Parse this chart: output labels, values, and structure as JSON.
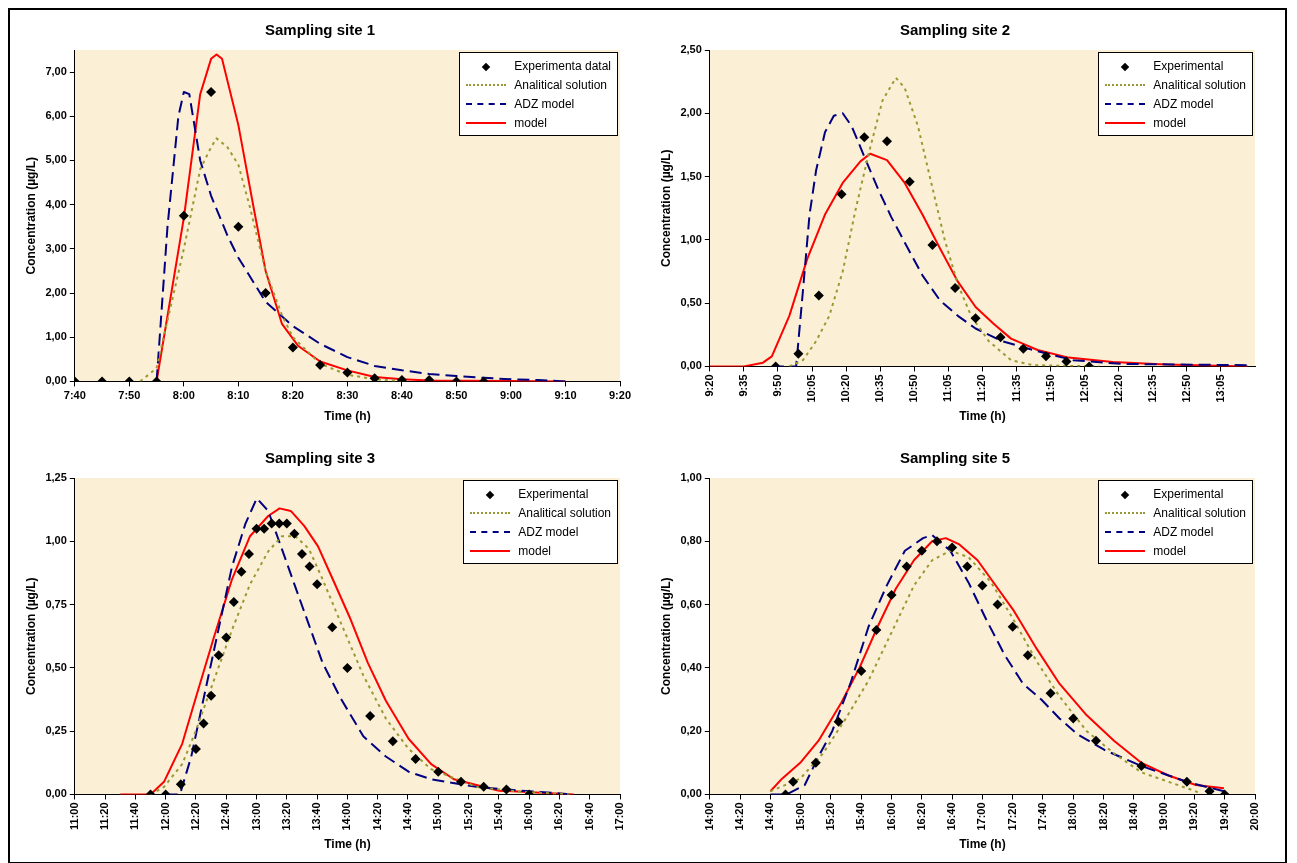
{
  "chart_data": [
    {
      "type": "line",
      "title": "Sampling site 1",
      "xlabel": "Time (h)",
      "ylabel": "Concentration (µg/L)",
      "xlim": [
        7.6667,
        9.3333
      ],
      "xticks": [
        {
          "value": 7.6667,
          "label": "7:40"
        },
        {
          "value": 7.8333,
          "label": "7:50"
        },
        {
          "value": 8,
          "label": "8:00"
        },
        {
          "value": 8.1667,
          "label": "8:10"
        },
        {
          "value": 8.3333,
          "label": "8:20"
        },
        {
          "value": 8.5,
          "label": "8:30"
        },
        {
          "value": 8.6667,
          "label": "8:40"
        },
        {
          "value": 8.8333,
          "label": "8:50"
        },
        {
          "value": 9,
          "label": "9:00"
        },
        {
          "value": 9.1667,
          "label": "9:10"
        },
        {
          "value": 9.3333,
          "label": "9:20"
        }
      ],
      "ylim": [
        0,
        7.5
      ],
      "yticks": [
        {
          "value": 0,
          "label": "0,00"
        },
        {
          "value": 1,
          "label": "1,00"
        },
        {
          "value": 2,
          "label": "2,00"
        },
        {
          "value": 3,
          "label": "3,00"
        },
        {
          "value": 4,
          "label": "4,00"
        },
        {
          "value": 5,
          "label": "5,00"
        },
        {
          "value": 6,
          "label": "6,00"
        },
        {
          "value": 7,
          "label": "7,00"
        }
      ],
      "grid": false,
      "legend": "top right",
      "series": [
        {
          "name": "Experimenta datal",
          "type": "scatter",
          "marker": "diamond",
          "color": "#000000",
          "x": [
            7.6667,
            7.75,
            7.8333,
            7.9167,
            8,
            8.0833,
            8.1667,
            8.25,
            8.3333,
            8.4167,
            8.5,
            8.5833,
            8.6667,
            8.75,
            8.8333,
            8.9167
          ],
          "values": [
            0,
            0,
            0,
            0,
            3.75,
            6.55,
            3.5,
            2.0,
            0.77,
            0.37,
            0.2,
            0.07,
            0.03,
            0.03,
            0,
            0
          ]
        },
        {
          "name": "Analitical solution",
          "type": "line",
          "line_style": "dotted",
          "color": "#999933",
          "x": [
            7.8667,
            7.9167,
            8,
            8.05,
            8.0833,
            8.1,
            8.1333,
            8.1667,
            8.2,
            8.25,
            8.3,
            8.3333,
            8.4167,
            8.5,
            8.5833,
            8.6667
          ],
          "values": [
            0,
            0.3,
            3.0,
            4.8,
            5.3,
            5.5,
            5.3,
            4.9,
            4.0,
            2.5,
            1.5,
            1.0,
            0.4,
            0.15,
            0.05,
            0
          ]
        },
        {
          "name": "ADZ model",
          "type": "line",
          "line_style": "dashed",
          "color": "#000080",
          "x": [
            7.9167,
            7.95,
            7.9833,
            8,
            8.0167,
            8.05,
            8.0833,
            8.1333,
            8.1667,
            8.25,
            8.3333,
            8.4167,
            8.5,
            8.5833,
            8.6667,
            8.75,
            8.8333,
            8.9167,
            9,
            9.0833,
            9.1667
          ],
          "values": [
            0,
            3.5,
            6.0,
            6.55,
            6.5,
            5.0,
            4.2,
            3.3,
            2.8,
            1.8,
            1.25,
            0.85,
            0.55,
            0.35,
            0.25,
            0.17,
            0.12,
            0.08,
            0.05,
            0.03,
            0
          ]
        },
        {
          "name": "model",
          "type": "line",
          "line_style": "solid",
          "color": "#ff0000",
          "x": [
            7.9167,
            8,
            8.05,
            8.0833,
            8.1,
            8.1167,
            8.1667,
            8.2167,
            8.25,
            8.3,
            8.35,
            8.4167,
            8.5,
            8.5833,
            8.6667,
            8.75,
            9.1667
          ],
          "values": [
            0,
            3.7,
            6.5,
            7.3,
            7.4,
            7.3,
            5.8,
            3.8,
            2.5,
            1.3,
            0.8,
            0.45,
            0.25,
            0.1,
            0.05,
            0.02,
            0
          ]
        }
      ]
    },
    {
      "type": "line",
      "title": "Sampling site 2",
      "xlabel": "Time (h)",
      "ylabel": "Concentration (µg/L)",
      "xlim": [
        9.3333,
        13.3333
      ],
      "xticks": [
        {
          "value": 9.3333,
          "label": "9:20"
        },
        {
          "value": 9.5833,
          "label": "9:35"
        },
        {
          "value": 9.8333,
          "label": "9:50"
        },
        {
          "value": 10.0833,
          "label": "10:05"
        },
        {
          "value": 10.3333,
          "label": "10:20"
        },
        {
          "value": 10.5833,
          "label": "10:35"
        },
        {
          "value": 10.8333,
          "label": "10:50"
        },
        {
          "value": 11.0833,
          "label": "11:05"
        },
        {
          "value": 11.3333,
          "label": "11:20"
        },
        {
          "value": 11.5833,
          "label": "11:35"
        },
        {
          "value": 11.8333,
          "label": "11:50"
        },
        {
          "value": 12.0833,
          "label": "12:05"
        },
        {
          "value": 12.3333,
          "label": "12:20"
        },
        {
          "value": 12.5833,
          "label": "12:35"
        },
        {
          "value": 12.8333,
          "label": "12:50"
        },
        {
          "value": 13.0833,
          "label": "13:05"
        }
      ],
      "ylim": [
        0,
        2.5
      ],
      "yticks": [
        {
          "value": 0,
          "label": "0,00"
        },
        {
          "value": 0.5,
          "label": "0,50"
        },
        {
          "value": 1,
          "label": "1,00"
        },
        {
          "value": 1.5,
          "label": "1,50"
        },
        {
          "value": 2,
          "label": "2,00"
        },
        {
          "value": 2.5,
          "label": "2,50"
        }
      ],
      "grid": false,
      "legend": "top right",
      "series": [
        {
          "name": "Experimental",
          "type": "scatter",
          "marker": "diamond",
          "color": "#000000",
          "x": [
            9.8167,
            9.9833,
            10.1333,
            10.3,
            10.4667,
            10.6333,
            10.8,
            10.9667,
            11.1333,
            11.2833,
            11.4667,
            11.6333,
            11.8,
            11.95,
            12.1167
          ],
          "values": [
            0,
            0.1,
            0.56,
            1.36,
            1.81,
            1.78,
            1.46,
            0.96,
            0.62,
            0.38,
            0.23,
            0.14,
            0.08,
            0.04,
            0
          ]
        },
        {
          "name": "Analitical solution",
          "type": "line",
          "line_style": "dotted",
          "color": "#999933",
          "x": [
            9.9167,
            10.0167,
            10.1133,
            10.21,
            10.3083,
            10.405,
            10.5033,
            10.6,
            10.6983,
            10.7633,
            10.86,
            10.9583,
            11.0567,
            11.1533,
            11.25,
            11.38,
            11.5433,
            11.705,
            12.1917
          ],
          "values": [
            0,
            0.05,
            0.2,
            0.4,
            0.75,
            1.25,
            1.7,
            2.1,
            2.28,
            2.2,
            1.9,
            1.45,
            1.0,
            0.65,
            0.4,
            0.2,
            0.05,
            0.01,
            0
          ]
        },
        {
          "name": "ADZ model",
          "type": "line",
          "line_style": "dashed",
          "color": "#000080",
          "x": [
            9.7883,
            9.9167,
            9.9667,
            10.0167,
            10.065,
            10.1133,
            10.1783,
            10.2433,
            10.3083,
            10.3733,
            10.47,
            10.5683,
            10.665,
            10.7633,
            10.8933,
            11.0233,
            11.1533,
            11.2833,
            11.4783,
            11.7383,
            11.9983,
            12.355,
            13.28
          ],
          "values": [
            0,
            0,
            0,
            0.6,
            1.2,
            1.55,
            1.85,
            1.98,
            2.0,
            1.9,
            1.65,
            1.4,
            1.18,
            0.98,
            0.72,
            0.52,
            0.4,
            0.3,
            0.2,
            0.12,
            0.05,
            0.02,
            0.01
          ]
        },
        {
          "name": "model",
          "type": "line",
          "line_style": "solid",
          "color": "#ff0000",
          "x": [
            9.3333,
            9.5833,
            9.7233,
            9.7883,
            9.9167,
            10.0483,
            10.1783,
            10.3083,
            10.4383,
            10.51,
            10.6333,
            10.7633,
            10.8933,
            11.0233,
            11.1533,
            11.2833,
            11.4133,
            11.5433,
            11.7383,
            11.965,
            12.29,
            12.68,
            13.28
          ],
          "values": [
            0,
            0,
            0.03,
            0.08,
            0.4,
            0.85,
            1.2,
            1.45,
            1.62,
            1.68,
            1.63,
            1.45,
            1.2,
            0.93,
            0.67,
            0.47,
            0.34,
            0.22,
            0.13,
            0.07,
            0.035,
            0.015,
            0
          ]
        }
      ]
    },
    {
      "type": "line",
      "title": "Sampling site 3",
      "xlabel": "Time (h)",
      "ylabel": "Concentration (µg/L)",
      "xlim": [
        11,
        17
      ],
      "xticks": [
        {
          "value": 11,
          "label": "11:00"
        },
        {
          "value": 11.3333,
          "label": "11:20"
        },
        {
          "value": 11.6667,
          "label": "11:40"
        },
        {
          "value": 12,
          "label": "12:00"
        },
        {
          "value": 12.3333,
          "label": "12:20"
        },
        {
          "value": 12.6667,
          "label": "12:40"
        },
        {
          "value": 13,
          "label": "13:00"
        },
        {
          "value": 13.3333,
          "label": "13:20"
        },
        {
          "value": 13.6667,
          "label": "13:40"
        },
        {
          "value": 14,
          "label": "14:00"
        },
        {
          "value": 14.3333,
          "label": "14:20"
        },
        {
          "value": 14.6667,
          "label": "14:40"
        },
        {
          "value": 15,
          "label": "15:00"
        },
        {
          "value": 15.3333,
          "label": "15:20"
        },
        {
          "value": 15.6667,
          "label": "15:40"
        },
        {
          "value": 16,
          "label": "16:00"
        },
        {
          "value": 16.3333,
          "label": "16:20"
        },
        {
          "value": 16.6667,
          "label": "16:40"
        },
        {
          "value": 17,
          "label": "17:00"
        }
      ],
      "ylim": [
        0,
        1.25
      ],
      "yticks": [
        {
          "value": 0,
          "label": "0,00"
        },
        {
          "value": 0.25,
          "label": "0,25"
        },
        {
          "value": 0.5,
          "label": "0,50"
        },
        {
          "value": 0.75,
          "label": "0,75"
        },
        {
          "value": 1,
          "label": "1,00"
        },
        {
          "value": 1.25,
          "label": "1,25"
        }
      ],
      "grid": false,
      "legend": "top right",
      "series": [
        {
          "name": "Experimental",
          "type": "scatter",
          "marker": "diamond",
          "color": "#000000",
          "x": [
            11.8333,
            12,
            12.1667,
            12.3333,
            12.4167,
            12.5,
            12.5833,
            12.6667,
            12.75,
            12.8333,
            12.9167,
            13,
            13.0833,
            13.1667,
            13.25,
            13.3333,
            13.4167,
            13.5,
            13.5833,
            13.6667,
            13.8333,
            14,
            14.25,
            14.5,
            14.75,
            15,
            15.25,
            15.5,
            15.75,
            16
          ],
          "values": [
            0,
            0,
            0.04,
            0.18,
            0.28,
            0.39,
            0.55,
            0.62,
            0.76,
            0.88,
            0.95,
            1.05,
            1.05,
            1.07,
            1.07,
            1.07,
            1.03,
            0.95,
            0.9,
            0.83,
            0.66,
            0.5,
            0.31,
            0.21,
            0.14,
            0.09,
            0.05,
            0.03,
            0.02,
            0
          ]
        },
        {
          "name": "Analitical solution",
          "type": "line",
          "line_style": "dotted",
          "color": "#999933",
          "x": [
            11.8333,
            11.9817,
            12.1817,
            12.33,
            12.53,
            12.73,
            12.9283,
            13.1283,
            13.2783,
            13.4267,
            13.5767,
            13.7267,
            13.925,
            14.175,
            14.4233,
            14.6733,
            14.9217,
            15.42,
            15.92,
            16.4917
          ],
          "values": [
            0,
            0.03,
            0.12,
            0.25,
            0.45,
            0.65,
            0.83,
            0.96,
            1.02,
            1.02,
            0.97,
            0.85,
            0.68,
            0.47,
            0.3,
            0.18,
            0.1,
            0.03,
            0.01,
            0
          ]
        },
        {
          "name": "ADZ model",
          "type": "line",
          "line_style": "dashed",
          "color": "#000080",
          "x": [
            12.0,
            12.1567,
            12.2817,
            12.43,
            12.58,
            12.73,
            12.8783,
            13.0033,
            13.1283,
            13.2783,
            13.4267,
            13.5767,
            13.7267,
            13.925,
            14.175,
            14.4233,
            14.6733,
            14.9217,
            15.42,
            15.92,
            16.4917
          ],
          "values": [
            0,
            0,
            0.15,
            0.4,
            0.65,
            0.9,
            1.07,
            1.17,
            1.12,
            0.97,
            0.82,
            0.67,
            0.52,
            0.38,
            0.23,
            0.15,
            0.09,
            0.06,
            0.03,
            0.015,
            0
          ]
        },
        {
          "name": "model",
          "type": "line",
          "line_style": "solid",
          "color": "#ff0000",
          "x": [
            11.5,
            11.8333,
            11.9817,
            12.1817,
            12.33,
            12.53,
            12.73,
            12.9283,
            13.1283,
            13.2533,
            13.3767,
            13.5267,
            13.6767,
            13.8267,
            14.025,
            14.225,
            14.4233,
            14.6733,
            14.9217,
            15.1717,
            15.67,
            16.4917
          ],
          "values": [
            0,
            0,
            0.05,
            0.2,
            0.38,
            0.62,
            0.85,
            1.02,
            1.1,
            1.13,
            1.12,
            1.06,
            0.98,
            0.86,
            0.7,
            0.52,
            0.37,
            0.22,
            0.12,
            0.06,
            0.015,
            0
          ]
        }
      ]
    },
    {
      "type": "line",
      "title": "Sampling site 5",
      "xlabel": "Time (h)",
      "ylabel": "Concentration (µg/L)",
      "xlim": [
        14,
        20
      ],
      "xticks": [
        {
          "value": 14,
          "label": "14:00"
        },
        {
          "value": 14.3333,
          "label": "14:20"
        },
        {
          "value": 14.6667,
          "label": "14:40"
        },
        {
          "value": 15,
          "label": "15:00"
        },
        {
          "value": 15.3333,
          "label": "15:20"
        },
        {
          "value": 15.6667,
          "label": "15:40"
        },
        {
          "value": 16,
          "label": "16:00"
        },
        {
          "value": 16.3333,
          "label": "16:20"
        },
        {
          "value": 16.6667,
          "label": "16:40"
        },
        {
          "value": 17,
          "label": "17:00"
        },
        {
          "value": 17.3333,
          "label": "17:20"
        },
        {
          "value": 17.6667,
          "label": "17:40"
        },
        {
          "value": 18,
          "label": "18:00"
        },
        {
          "value": 18.3333,
          "label": "18:20"
        },
        {
          "value": 18.6667,
          "label": "18:40"
        },
        {
          "value": 19,
          "label": "19:00"
        },
        {
          "value": 19.3333,
          "label": "19:20"
        },
        {
          "value": 19.6667,
          "label": "19:40"
        },
        {
          "value": 20,
          "label": "20:00"
        }
      ],
      "ylim": [
        0,
        1
      ],
      "yticks": [
        {
          "value": 0,
          "label": "0,00"
        },
        {
          "value": 0.2,
          "label": "0,20"
        },
        {
          "value": 0.4,
          "label": "0,40"
        },
        {
          "value": 0.6,
          "label": "0,60"
        },
        {
          "value": 0.8,
          "label": "0,80"
        },
        {
          "value": 1,
          "label": "1,00"
        }
      ],
      "grid": false,
      "legend": "top right",
      "series": [
        {
          "name": "Experimental",
          "type": "scatter",
          "marker": "diamond",
          "color": "#000000",
          "x": [
            14.8333,
            14.9167,
            15.1667,
            15.4167,
            15.6667,
            15.8333,
            16,
            16.1667,
            16.3333,
            16.5,
            16.6667,
            16.8333,
            17,
            17.1667,
            17.3333,
            17.5,
            17.75,
            18,
            18.25,
            18.75,
            19.25,
            19.5,
            19.6667
          ],
          "values": [
            0,
            0.04,
            0.1,
            0.23,
            0.39,
            0.52,
            0.63,
            0.72,
            0.77,
            0.8,
            0.78,
            0.72,
            0.66,
            0.6,
            0.53,
            0.44,
            0.32,
            0.24,
            0.17,
            0.09,
            0.04,
            0.01,
            0
          ]
        },
        {
          "name": "Analitical solution",
          "type": "line",
          "line_style": "dotted",
          "color": "#999933",
          "x": [
            14.6667,
            14.995,
            15.2467,
            15.4967,
            15.7467,
            15.9967,
            16.2467,
            16.4467,
            16.6467,
            16.8467,
            17.0967,
            17.3467,
            17.5983,
            17.8483,
            18.1483,
            18.4483,
            18.7483,
            19.0483,
            19.3483,
            19.4083
          ],
          "values": [
            0.01,
            0.05,
            0.13,
            0.24,
            0.36,
            0.51,
            0.66,
            0.74,
            0.77,
            0.75,
            0.67,
            0.55,
            0.42,
            0.31,
            0.2,
            0.13,
            0.07,
            0.04,
            0.01,
            0
          ]
        },
        {
          "name": "ADZ model",
          "type": "line",
          "line_style": "dashed",
          "color": "#000080",
          "x": [
            14.6667,
            14.845,
            15.045,
            15.1967,
            15.3467,
            15.5467,
            15.7467,
            15.9467,
            16.1467,
            16.3467,
            16.4467,
            16.6467,
            16.8467,
            17.0467,
            17.2467,
            17.4467,
            17.6483,
            17.8483,
            18.0483,
            18.3483,
            18.7483,
            19.2483,
            19.6583
          ],
          "values": [
            0,
            0,
            0.03,
            0.12,
            0.2,
            0.35,
            0.53,
            0.66,
            0.77,
            0.81,
            0.82,
            0.77,
            0.67,
            0.55,
            0.44,
            0.35,
            0.3,
            0.24,
            0.19,
            0.14,
            0.09,
            0.04,
            0.01
          ]
        },
        {
          "name": "model",
          "type": "line",
          "line_style": "solid",
          "color": "#ff0000",
          "x": [
            14.6667,
            14.795,
            14.995,
            15.1967,
            15.4467,
            15.6467,
            15.8467,
            16.0467,
            16.2467,
            16.4467,
            16.5967,
            16.7467,
            16.9467,
            17.0967,
            17.3467,
            17.5983,
            17.8483,
            18.1483,
            18.4483,
            18.7483,
            19.0483,
            19.3483,
            19.6583
          ],
          "values": [
            0.01,
            0.05,
            0.1,
            0.17,
            0.29,
            0.4,
            0.53,
            0.65,
            0.74,
            0.8,
            0.81,
            0.79,
            0.74,
            0.68,
            0.58,
            0.46,
            0.35,
            0.25,
            0.17,
            0.1,
            0.06,
            0.03,
            0.02
          ]
        }
      ]
    }
  ]
}
